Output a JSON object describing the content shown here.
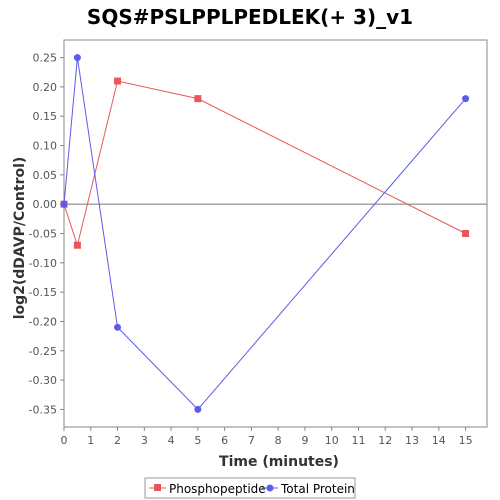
{
  "chart_data": {
    "type": "line",
    "title": "SQS#PSLPPLPEDLEK(+ 3)_v1",
    "xlabel": "Time (minutes)",
    "ylabel": "log2(dDAVP/Control)",
    "xlim": [
      0,
      15.8
    ],
    "ylim": [
      -0.38,
      0.28
    ],
    "xticks": [
      0,
      1,
      2,
      3,
      4,
      5,
      6,
      7,
      8,
      9,
      10,
      11,
      12,
      13,
      14,
      15
    ],
    "yticks": [
      -0.35,
      -0.3,
      -0.25,
      -0.2,
      -0.15,
      -0.1,
      -0.05,
      0.0,
      0.05,
      0.1,
      0.15,
      0.2,
      0.25
    ],
    "ytick_labels": [
      "-0.35",
      "-0.30",
      "-0.25",
      "-0.20",
      "-0.15",
      "-0.10",
      "-0.05",
      "0.00",
      "0.05",
      "0.10",
      "0.15",
      "0.20",
      "0.25"
    ],
    "zero_line": true,
    "grid": false,
    "legend_position": "bottom",
    "series": [
      {
        "name": "Phosphopeptide",
        "color": "#e8575a",
        "marker": "square",
        "x": [
          0,
          0.5,
          2,
          5,
          15
        ],
        "values": [
          0.0,
          -0.07,
          0.21,
          0.18,
          -0.05
        ]
      },
      {
        "name": "Total Protein",
        "color": "#5b5be8",
        "marker": "circle",
        "x": [
          0,
          0.5,
          2,
          5,
          15
        ],
        "values": [
          0.0,
          0.25,
          -0.21,
          -0.35,
          0.18
        ]
      }
    ]
  }
}
